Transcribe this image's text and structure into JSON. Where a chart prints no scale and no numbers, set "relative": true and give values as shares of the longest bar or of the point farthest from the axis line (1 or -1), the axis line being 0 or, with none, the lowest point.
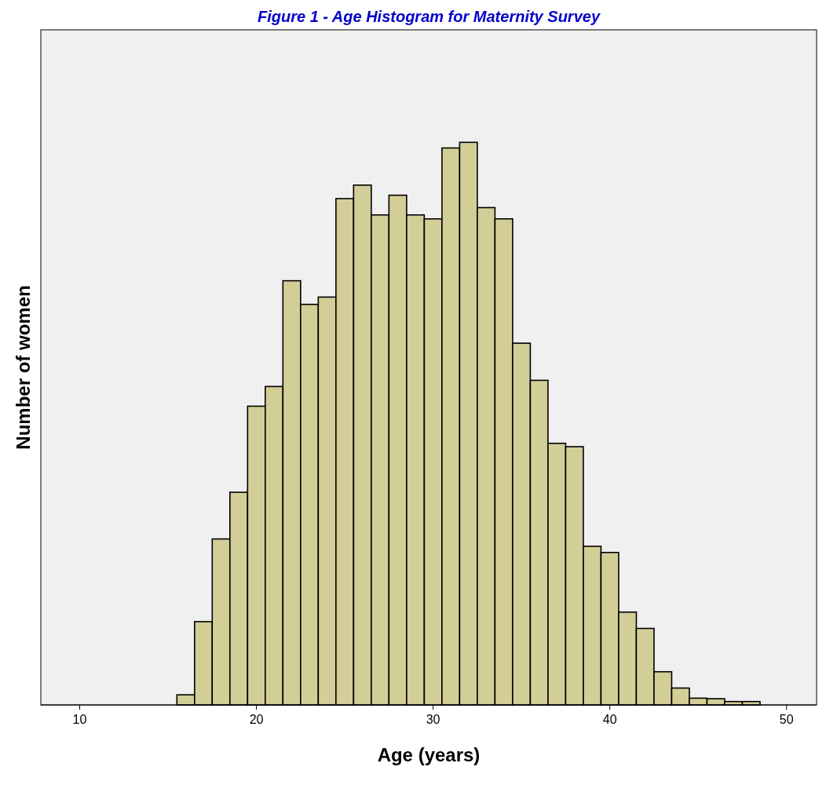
{
  "chart_data": {
    "type": "bar",
    "title": "Figure 1 - Age Histogram for Maternity Survey",
    "xlabel": "Age (years)",
    "ylabel": "Number of women",
    "relative": true,
    "x": [
      16,
      17,
      18,
      19,
      20,
      21,
      22,
      23,
      24,
      25,
      26,
      27,
      28,
      29,
      30,
      31,
      32,
      33,
      34,
      35,
      36,
      37,
      38,
      39,
      40,
      41,
      42,
      43,
      44,
      45,
      46,
      47,
      48
    ],
    "values": [
      0.018,
      0.148,
      0.295,
      0.378,
      0.531,
      0.566,
      0.754,
      0.712,
      0.725,
      0.9,
      0.924,
      0.871,
      0.906,
      0.871,
      0.864,
      0.99,
      1,
      0.884,
      0.864,
      0.643,
      0.577,
      0.465,
      0.459,
      0.282,
      0.271,
      0.165,
      0.136,
      0.059,
      0.03,
      0.012,
      0.011,
      0.006,
      0.006
    ],
    "color": "#d3ce97",
    "xlim": [
      7.8,
      51.7
    ],
    "xticks": [
      10,
      20,
      30,
      40,
      50
    ],
    "grid": false,
    "legend": false
  }
}
